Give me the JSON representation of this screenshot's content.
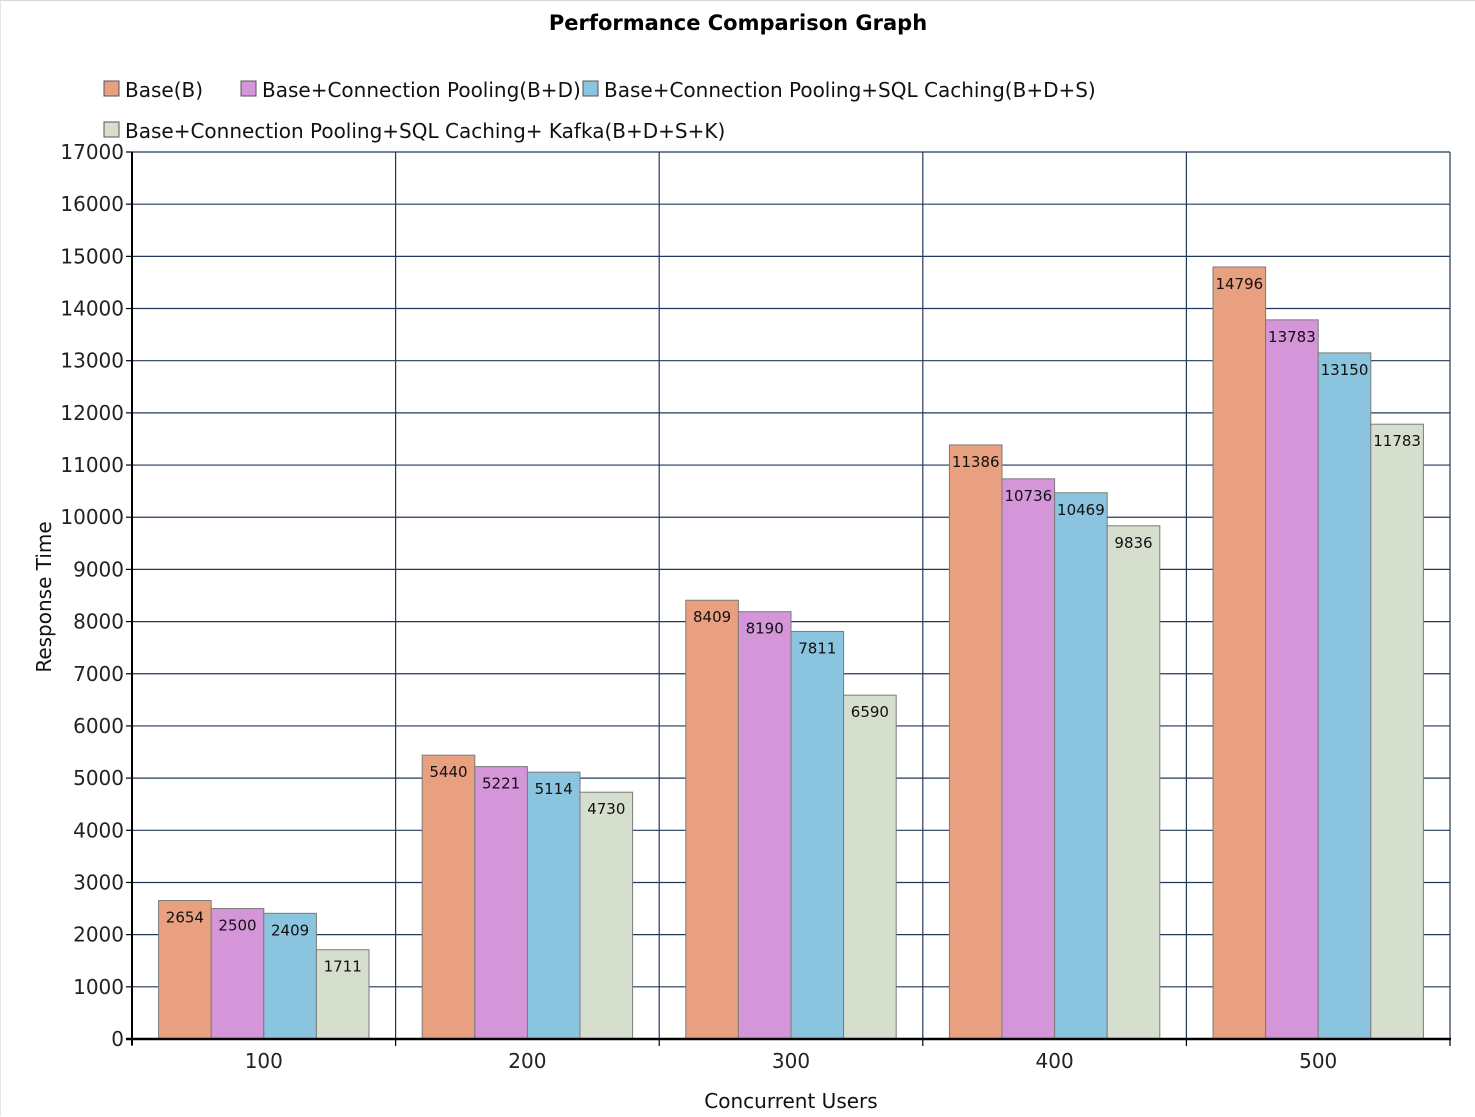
{
  "chart_data": {
    "type": "bar",
    "title": "Performance Comparison Graph",
    "xlabel": "Concurrent Users",
    "ylabel": "Response Time",
    "categories": [
      "100",
      "200",
      "300",
      "400",
      "500"
    ],
    "ylim": [
      0,
      17000
    ],
    "ytick_step": 1000,
    "grid": true,
    "legend_position": "top-left",
    "series": [
      {
        "name": "Base(B)",
        "color": "#e8a080",
        "values": [
          2654,
          5440,
          8409,
          11386,
          14796
        ]
      },
      {
        "name": "Base+Connection Pooling(B+D)",
        "color": "#d595d9",
        "values": [
          2500,
          5221,
          8190,
          10736,
          13783
        ]
      },
      {
        "name": "Base+Connection Pooling+SQL Caching(B+D+S)",
        "color": "#8ac4de",
        "values": [
          2409,
          5114,
          7811,
          10469,
          13150
        ]
      },
      {
        "name": "Base+Connection Pooling+SQL Caching+ Kafka(B+D+S+K)",
        "color": "#d6dece",
        "values": [
          1711,
          4730,
          6590,
          9836,
          11783
        ]
      }
    ]
  }
}
